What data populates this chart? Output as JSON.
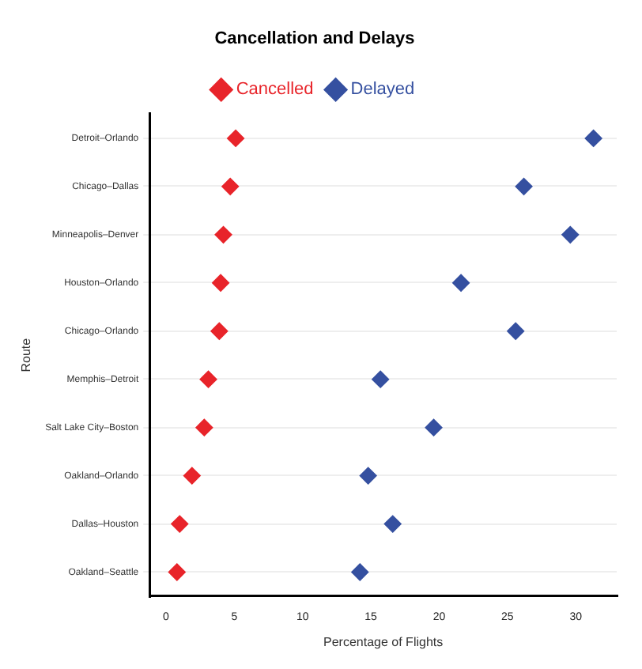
{
  "chart_data": {
    "type": "scatter",
    "title": "Cancellation and Delays",
    "xlabel": "Percentage of Flights",
    "ylabel": "Route",
    "categories": [
      "Detroit–Orlando",
      "Chicago–Dallas",
      "Minneapolis–Denver",
      "Houston–Orlando",
      "Chicago–Orlando",
      "Memphis–Detroit",
      "Salt Lake City–Boston",
      "Oakland–Orlando",
      "Dallas–Houston",
      "Oakland–Seattle"
    ],
    "series": [
      {
        "name": "Cancelled",
        "color": "#e8242a",
        "values": [
          5.1,
          4.7,
          4.2,
          4.0,
          3.9,
          3.1,
          2.8,
          1.9,
          1.0,
          0.8
        ]
      },
      {
        "name": "Delayed",
        "color": "#3550a0",
        "values": [
          31.3,
          26.2,
          29.6,
          21.6,
          25.6,
          15.7,
          19.6,
          14.8,
          16.6,
          14.2
        ]
      }
    ],
    "orientation": "horizontal",
    "xlim": [
      -1.2,
      33
    ],
    "xticks": [
      0,
      5,
      10,
      15,
      20,
      25,
      30
    ],
    "grid": "y",
    "legend": "top",
    "marker": "diamond"
  }
}
